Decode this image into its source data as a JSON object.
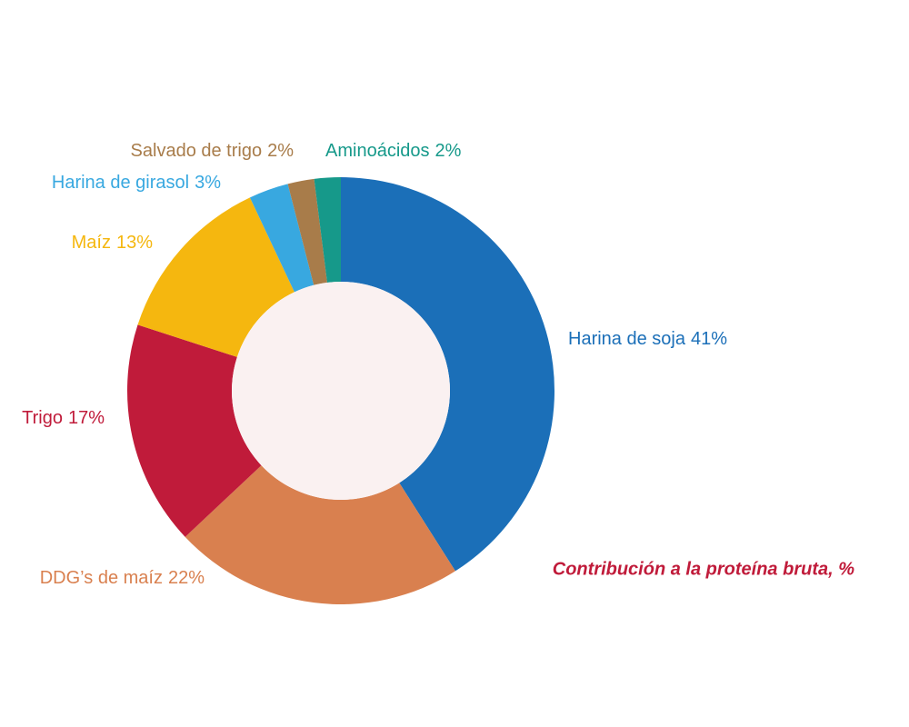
{
  "chart_data": {
    "type": "donut",
    "title": "Contribución a la proteína bruta, %",
    "categories": [
      "Harina de soja",
      "DDG’s de maíz",
      "Trigo",
      "Maíz",
      "Harina de girasol",
      "Salvado de trigo",
      "Aminoácidos"
    ],
    "values": [
      41,
      22,
      17,
      13,
      3,
      2,
      2
    ],
    "value_labels": [
      "41%",
      "22%",
      "17%",
      "13%",
      "3%",
      "2%",
      "2%"
    ],
    "colors": [
      "#1b6fb8",
      "#d9804f",
      "#c01b3a",
      "#f5b70f",
      "#38a8e0",
      "#a87c4a",
      "#16998a"
    ],
    "title_color": "#c01b3a"
  }
}
